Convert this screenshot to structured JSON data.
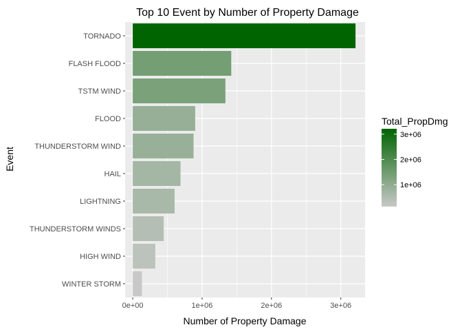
{
  "chart_data": {
    "type": "bar",
    "orientation": "horizontal",
    "title": "Top 10 Event by Number of Property Damage",
    "xlabel": "Number of Property Damage",
    "ylabel": "Event",
    "categories": [
      "TORNADO",
      "FLASH FLOOD",
      "TSTM WIND",
      "FLOOD",
      "THUNDERSTORM WIND",
      "HAIL",
      "LIGHTNING",
      "THUNDERSTORM WINDS",
      "HIGH WIND",
      "WINTER STORM"
    ],
    "values": [
      3212258,
      1420125,
      1335966,
      899938,
      876844,
      688693,
      603352,
      446293,
      324732,
      132721
    ],
    "xlim": [
      -110000,
      3350000
    ],
    "xticks": [
      0,
      1000000,
      2000000,
      3000000
    ],
    "xtick_labels": [
      "0e+00",
      "1e+06",
      "2e+06",
      "3e+06"
    ],
    "grid": true,
    "legend": {
      "title": "Total_PropDmg",
      "position": "right",
      "ticks": [
        1000000,
        2000000,
        3000000
      ],
      "tick_labels": [
        "1e+06",
        "2e+06",
        "3e+06"
      ]
    },
    "colors": {
      "low": "#C8C8C8",
      "high": "#006400",
      "panel_bg": "#EBEBEB",
      "grid": "#FFFFFF",
      "axis_text": "#4D4D4D",
      "title_text": "#000000"
    }
  }
}
